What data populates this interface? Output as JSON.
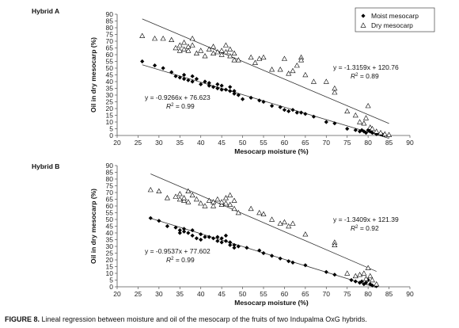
{
  "caption": {
    "label": "FIGURE 8.",
    "text": " Lineal regression between moisture and oil of the mesocarp of the fruits of two Indupalma OxG hybrids."
  },
  "colors": {
    "moist": "#000000",
    "dry": "#000000",
    "axis": "#555555",
    "trend": "#333333"
  },
  "chart_data": [
    {
      "type": "scatter",
      "panel_label": "Hybrid A",
      "xlabel": "Mesocarp moisture (%)",
      "ylabel": "Oil in dry mesocarp (%)",
      "xlim": [
        20,
        90
      ],
      "ylim": [
        0,
        90
      ],
      "xticks": [
        20,
        25,
        30,
        35,
        40,
        45,
        50,
        55,
        60,
        65,
        70,
        75,
        80,
        85,
        90
      ],
      "yticks": [
        0,
        5,
        10,
        15,
        20,
        25,
        30,
        35,
        40,
        45,
        50,
        55,
        60,
        65,
        70,
        75,
        80,
        85,
        90
      ],
      "legend": {
        "placement": "top-right",
        "entries": [
          "Moist mesocarp",
          "Dry mesocarp"
        ]
      },
      "series": [
        {
          "name": "Moist mesocarp",
          "marker": "diamond",
          "trend": {
            "slope": -0.9266,
            "intercept": 76.623,
            "x_range": [
              26,
              85
            ]
          },
          "equation": "y = -0.9266x + 76.623",
          "r2": "0.99",
          "points": [
            [
              26,
              55
            ],
            [
              29,
              52
            ],
            [
              31,
              50
            ],
            [
              33,
              47
            ],
            [
              34,
              44
            ],
            [
              35,
              43
            ],
            [
              36,
              42
            ],
            [
              36,
              45
            ],
            [
              37,
              41
            ],
            [
              38,
              44
            ],
            [
              38,
              40
            ],
            [
              39,
              42
            ],
            [
              40,
              38
            ],
            [
              41,
              40
            ],
            [
              42,
              37
            ],
            [
              42,
              39
            ],
            [
              43,
              36
            ],
            [
              44,
              38
            ],
            [
              44,
              35
            ],
            [
              45,
              37
            ],
            [
              45,
              34
            ],
            [
              46,
              34
            ],
            [
              47,
              33
            ],
            [
              47,
              36
            ],
            [
              48,
              31
            ],
            [
              48,
              33
            ],
            [
              49,
              30
            ],
            [
              50,
              27
            ],
            [
              52,
              28
            ],
            [
              54,
              26
            ],
            [
              55,
              25
            ],
            [
              57,
              22
            ],
            [
              59,
              21
            ],
            [
              60,
              19
            ],
            [
              61,
              18
            ],
            [
              62,
              19
            ],
            [
              63,
              17
            ],
            [
              64,
              17
            ],
            [
              65,
              16
            ],
            [
              67,
              14
            ],
            [
              70,
              10
            ],
            [
              72,
              9
            ],
            [
              75,
              5
            ],
            [
              77,
              4
            ],
            [
              78,
              3
            ],
            [
              78.5,
              4
            ],
            [
              79,
              3
            ],
            [
              79.5,
              2
            ],
            [
              80,
              4
            ],
            [
              80.5,
              3
            ],
            [
              81,
              2
            ],
            [
              82,
              1
            ],
            [
              83,
              1
            ],
            [
              83.5,
              0.5
            ],
            [
              84,
              0.3
            ],
            [
              85,
              0.2
            ]
          ]
        },
        {
          "name": "Dry mesocarp",
          "marker": "triangle-open",
          "trend": {
            "slope": -1.3159,
            "intercept": 120.76,
            "x_range": [
              26,
              85
            ]
          },
          "equation": "y = -1.3159x + 120.76",
          "r2": "0.89",
          "points": [
            [
              26,
              74
            ],
            [
              29,
              72
            ],
            [
              31,
              72
            ],
            [
              33,
              71
            ],
            [
              34,
              65
            ],
            [
              35,
              67
            ],
            [
              35,
              63
            ],
            [
              36,
              69
            ],
            [
              36,
              64
            ],
            [
              37,
              63
            ],
            [
              37,
              66
            ],
            [
              38,
              72
            ],
            [
              38,
              67
            ],
            [
              39,
              61
            ],
            [
              40,
              63
            ],
            [
              41,
              59
            ],
            [
              42,
              64
            ],
            [
              43,
              66
            ],
            [
              43,
              61
            ],
            [
              44,
              62
            ],
            [
              45,
              60
            ],
            [
              45,
              63
            ],
            [
              46,
              67
            ],
            [
              46,
              62
            ],
            [
              47,
              59
            ],
            [
              47,
              64
            ],
            [
              48,
              61
            ],
            [
              48,
              56
            ],
            [
              49,
              56
            ],
            [
              52,
              58
            ],
            [
              53,
              54
            ],
            [
              54,
              57
            ],
            [
              55,
              58
            ],
            [
              57,
              49
            ],
            [
              59,
              49
            ],
            [
              60,
              57
            ],
            [
              61,
              46
            ],
            [
              62,
              48
            ],
            [
              63,
              52
            ],
            [
              64,
              58
            ],
            [
              64,
              56
            ],
            [
              65,
              45
            ],
            [
              67,
              40
            ],
            [
              70,
              40
            ],
            [
              72,
              32
            ],
            [
              72,
              35
            ],
            [
              75,
              18
            ],
            [
              77,
              15
            ],
            [
              78,
              10
            ],
            [
              79,
              9
            ],
            [
              79.5,
              13
            ],
            [
              80,
              22
            ],
            [
              80.5,
              6
            ],
            [
              81,
              5
            ],
            [
              82,
              3
            ],
            [
              83,
              2
            ],
            [
              84,
              1
            ],
            [
              85,
              0.5
            ]
          ]
        }
      ]
    },
    {
      "type": "scatter",
      "panel_label": "Hybrid B",
      "xlabel": "Mesocarp moisture (%)",
      "ylabel": "Oil in dry mesocarp (%)",
      "xlim": [
        20,
        90
      ],
      "ylim": [
        0,
        90
      ],
      "xticks": [
        20,
        25,
        30,
        35,
        40,
        45,
        50,
        55,
        60,
        65,
        70,
        75,
        80,
        85,
        90
      ],
      "yticks": [
        0,
        5,
        10,
        15,
        20,
        25,
        30,
        35,
        40,
        45,
        50,
        55,
        60,
        65,
        70,
        75,
        80,
        85,
        90
      ],
      "series": [
        {
          "name": "Moist mesocarp",
          "marker": "diamond",
          "trend": {
            "slope": -0.9537,
            "intercept": 77.602,
            "x_range": [
              28,
              82
            ]
          },
          "equation": "y = -0.9537x + 77.602",
          "r2": "0.99",
          "points": [
            [
              28,
              51
            ],
            [
              30,
              49
            ],
            [
              32,
              45
            ],
            [
              34,
              44
            ],
            [
              35,
              42
            ],
            [
              35,
              40
            ],
            [
              36,
              43
            ],
            [
              36,
              41
            ],
            [
              37,
              40
            ],
            [
              38,
              38
            ],
            [
              38,
              42
            ],
            [
              39,
              36
            ],
            [
              40,
              35
            ],
            [
              40,
              39
            ],
            [
              41,
              37
            ],
            [
              42,
              37
            ],
            [
              43,
              36
            ],
            [
              44,
              34
            ],
            [
              44,
              37
            ],
            [
              45,
              33
            ],
            [
              45,
              36
            ],
            [
              46,
              38
            ],
            [
              46,
              34
            ],
            [
              47,
              33
            ],
            [
              47,
              31
            ],
            [
              48,
              31
            ],
            [
              48,
              29
            ],
            [
              49,
              30
            ],
            [
              51,
              29
            ],
            [
              54,
              27
            ],
            [
              55,
              25
            ],
            [
              57,
              23
            ],
            [
              59,
              21
            ],
            [
              61,
              19
            ],
            [
              62,
              18
            ],
            [
              65,
              16
            ],
            [
              70,
              11
            ],
            [
              72,
              9
            ],
            [
              76,
              5
            ],
            [
              77,
              4
            ],
            [
              78,
              3
            ],
            [
              78.5,
              4
            ],
            [
              79,
              2
            ],
            [
              79.5,
              3
            ],
            [
              80,
              5
            ],
            [
              80.5,
              2
            ],
            [
              81,
              1
            ],
            [
              82,
              0.5
            ]
          ]
        },
        {
          "name": "Dry mesocarp",
          "marker": "triangle-open",
          "trend": {
            "slope": -1.3409,
            "intercept": 121.39,
            "x_range": [
              28,
              82
            ]
          },
          "equation": "y = -1.3409x + 121.39",
          "r2": "0.92",
          "points": [
            [
              28,
              72
            ],
            [
              30,
              71
            ],
            [
              32,
              66
            ],
            [
              34,
              67
            ],
            [
              35,
              65
            ],
            [
              35,
              69
            ],
            [
              36,
              64
            ],
            [
              36,
              66
            ],
            [
              37,
              71
            ],
            [
              37,
              63
            ],
            [
              38,
              68
            ],
            [
              39,
              65
            ],
            [
              40,
              62
            ],
            [
              41,
              60
            ],
            [
              42,
              64
            ],
            [
              43,
              63
            ],
            [
              43,
              60
            ],
            [
              44,
              65
            ],
            [
              45,
              61
            ],
            [
              45,
              63
            ],
            [
              46,
              66
            ],
            [
              46,
              62
            ],
            [
              47,
              61
            ],
            [
              47,
              68
            ],
            [
              48,
              58
            ],
            [
              48,
              64
            ],
            [
              49,
              55
            ],
            [
              52,
              58
            ],
            [
              54,
              55
            ],
            [
              55,
              54
            ],
            [
              57,
              50
            ],
            [
              59,
              47
            ],
            [
              60,
              48
            ],
            [
              61,
              45
            ],
            [
              62,
              47
            ],
            [
              65,
              39
            ],
            [
              72,
              33
            ],
            [
              72,
              31
            ],
            [
              75,
              10
            ],
            [
              77,
              8
            ],
            [
              78,
              9
            ],
            [
              79,
              10
            ],
            [
              79.5,
              6
            ],
            [
              80,
              14
            ],
            [
              80.5,
              8
            ],
            [
              81,
              5
            ],
            [
              82,
              2
            ]
          ]
        }
      ]
    }
  ]
}
